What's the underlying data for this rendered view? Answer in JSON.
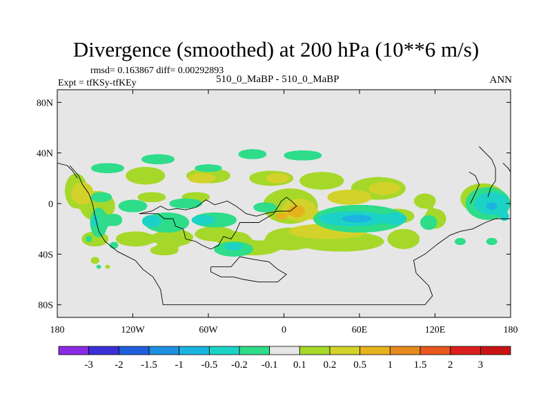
{
  "chart_data": {
    "type": "heatmap",
    "title": "Divergence (smoothed) at 200 hPa (10**6 m/s)",
    "stats": "rmsd= 0.163867 diff= 0.00292893",
    "experiment": "Expt = tfKSy-tfKEy",
    "case": "510_0_MaBP - 510_0_MaBP",
    "season": "ANN",
    "xlim": [
      -180,
      180
    ],
    "ylim": [
      -90,
      90
    ],
    "x_ticks": [
      {
        "value": -180,
        "label": "180"
      },
      {
        "value": -120,
        "label": "120W"
      },
      {
        "value": -60,
        "label": "60W"
      },
      {
        "value": 0,
        "label": "0"
      },
      {
        "value": 60,
        "label": "60E"
      },
      {
        "value": 120,
        "label": "120E"
      },
      {
        "value": 180,
        "label": "180"
      }
    ],
    "y_ticks": [
      {
        "value": 80,
        "label": "80N"
      },
      {
        "value": 40,
        "label": "40N"
      },
      {
        "value": 0,
        "label": "0"
      },
      {
        "value": -40,
        "label": "40S"
      },
      {
        "value": -80,
        "label": "80S"
      }
    ],
    "colorbar": {
      "levels": [
        "-3",
        "-2",
        "-1.5",
        "-1",
        "-0.5",
        "-0.2",
        "-0.1",
        "0.1",
        "0.2",
        "0.5",
        "1",
        "1.5",
        "2",
        "3"
      ],
      "colors": [
        "#8a2be2",
        "#3b2fd6",
        "#1f5fdc",
        "#1e8fe0",
        "#1ab3e0",
        "#1ed2c6",
        "#2fdc8a",
        "#e6e6e6",
        "#a6d82a",
        "#d2d22a",
        "#e6b21e",
        "#e68a1e",
        "#e6581e",
        "#dc1e1e",
        "#c81414"
      ]
    },
    "fields": [
      {
        "value": "0.1 to 0.2",
        "color": "#a6d82a",
        "blobs": [
          [
            -148,
            -2,
            14,
            12
          ],
          [
            -165,
            10,
            9,
            14
          ],
          [
            -150,
            -28,
            11,
            6
          ],
          [
            -118,
            -28,
            16,
            6
          ],
          [
            -88,
            -27,
            16,
            7
          ],
          [
            -55,
            -24,
            16,
            6
          ],
          [
            -40,
            -28,
            14,
            6
          ],
          [
            -95,
            -37,
            12,
            4
          ],
          [
            -25,
            -35,
            22,
            6
          ],
          [
            5,
            -2,
            22,
            14
          ],
          [
            5,
            -28,
            20,
            9
          ],
          [
            45,
            -30,
            35,
            8
          ],
          [
            95,
            -28,
            13,
            8
          ],
          [
            90,
            -10,
            14,
            6
          ],
          [
            120,
            -12,
            9,
            8
          ],
          [
            158,
            4,
            18,
            12
          ],
          [
            -110,
            22,
            16,
            7
          ],
          [
            -60,
            22,
            18,
            6
          ],
          [
            -10,
            20,
            18,
            6
          ],
          [
            30,
            18,
            18,
            7
          ],
          [
            75,
            12,
            22,
            9
          ],
          [
            112,
            2,
            9,
            6
          ],
          [
            -105,
            5,
            12,
            4
          ],
          [
            -70,
            5,
            12,
            4
          ],
          [
            -150,
            -45,
            4,
            3
          ],
          [
            -140,
            -50,
            3,
            2
          ]
        ]
      },
      {
        "value": "0.2 to 0.5",
        "color": "#d2d22a",
        "blobs": [
          [
            -160,
            8,
            9,
            9
          ],
          [
            12,
            -5,
            14,
            9
          ],
          [
            35,
            -22,
            32,
            6
          ],
          [
            52,
            5,
            18,
            6
          ],
          [
            80,
            12,
            13,
            5
          ],
          [
            -65,
            20,
            12,
            4
          ],
          [
            -5,
            20,
            10,
            4
          ],
          [
            30,
            -10,
            10,
            4
          ],
          [
            160,
            2,
            12,
            8
          ]
        ]
      },
      {
        "value": "0.5 to 1",
        "color": "#e6b21e",
        "blobs": [
          [
            10,
            -6,
            7,
            5
          ],
          [
            -2,
            -10,
            5,
            3
          ]
        ]
      },
      {
        "value": "-0.2 to -0.1",
        "color": "#2fdc8a",
        "blobs": [
          [
            -147,
            -15,
            7,
            12
          ],
          [
            -135,
            -13,
            7,
            5
          ],
          [
            -155,
            -28,
            3,
            3
          ],
          [
            -135,
            -33,
            4,
            3
          ],
          [
            -145,
            5,
            9,
            4
          ],
          [
            -140,
            28,
            14,
            4
          ],
          [
            -100,
            35,
            14,
            4
          ],
          [
            -60,
            28,
            12,
            3
          ],
          [
            -25,
            39,
            12,
            4
          ],
          [
            15,
            38,
            16,
            4
          ],
          [
            -93,
            -15,
            18,
            8
          ],
          [
            -55,
            -13,
            18,
            6
          ],
          [
            -40,
            -36,
            16,
            6
          ],
          [
            60,
            -12,
            37,
            11
          ],
          [
            115,
            -15,
            7,
            6
          ],
          [
            162,
            0,
            18,
            13
          ],
          [
            -120,
            -2,
            12,
            5
          ],
          [
            -78,
            0,
            14,
            4
          ],
          [
            -15,
            -3,
            10,
            4
          ],
          [
            140,
            -30,
            5,
            3
          ],
          [
            165,
            -30,
            5,
            3
          ],
          [
            -147,
            -50,
            3,
            2
          ]
        ]
      },
      {
        "value": "-0.5 to -0.2",
        "color": "#1ed2c6",
        "blobs": [
          [
            -150,
            -14,
            3,
            5
          ],
          [
            -105,
            -14,
            8,
            5
          ],
          [
            -64,
            -13,
            10,
            4
          ],
          [
            -40,
            -34,
            8,
            3
          ],
          [
            55,
            -12,
            28,
            6
          ],
          [
            88,
            -12,
            10,
            5
          ],
          [
            165,
            0,
            14,
            9
          ],
          [
            175,
            -10,
            4,
            4
          ]
        ]
      },
      {
        "value": "-1 to -0.5",
        "color": "#1ab3e0",
        "blobs": [
          [
            58,
            -12,
            13,
            3
          ],
          [
            165,
            -2,
            5,
            3
          ]
        ]
      }
    ],
    "coastline": [
      [
        [
          -170,
          30
        ],
        [
          -163,
          22
        ],
        [
          -160,
          15
        ],
        [
          -155,
          8
        ],
        [
          -152,
          0
        ],
        [
          -150,
          -10
        ],
        [
          -147,
          -22
        ],
        [
          -142,
          -30
        ],
        [
          -132,
          -38
        ],
        [
          -118,
          -45
        ],
        [
          -112,
          -52
        ],
        [
          -104,
          -58
        ],
        [
          -98,
          -68
        ],
        [
          -96,
          -80
        ],
        [
          -75,
          -80
        ],
        [
          -40,
          -80
        ],
        [
          0,
          -80
        ],
        [
          40,
          -80
        ],
        [
          80,
          -80
        ],
        [
          112,
          -80
        ],
        [
          118,
          -73
        ],
        [
          115,
          -65
        ],
        [
          105,
          -55
        ],
        [
          103,
          -45
        ],
        [
          112,
          -40
        ],
        [
          122,
          -32
        ],
        [
          132,
          -25
        ],
        [
          140,
          -22
        ],
        [
          150,
          -20
        ],
        [
          160,
          -15
        ],
        [
          168,
          -12
        ],
        [
          180,
          -12
        ]
      ],
      [
        [
          -115,
          -8
        ],
        [
          -100,
          -8
        ],
        [
          -95,
          -12
        ],
        [
          -88,
          -12
        ],
        [
          -86,
          -18
        ],
        [
          -80,
          -20
        ],
        [
          -78,
          -28
        ],
        [
          -70,
          -30
        ],
        [
          -65,
          -33
        ],
        [
          -58,
          -36
        ],
        [
          -52,
          -33
        ],
        [
          -48,
          -26
        ],
        [
          -42,
          -28
        ],
        [
          -38,
          -22
        ],
        [
          -35,
          -15
        ],
        [
          -20,
          -15
        ],
        [
          -15,
          -12
        ],
        [
          -8,
          -8
        ],
        [
          -5,
          -3
        ],
        [
          -2,
          2
        ],
        [
          2,
          5
        ],
        [
          6,
          2
        ],
        [
          10,
          -2
        ],
        [
          5,
          -6
        ],
        [
          -5,
          -6
        ],
        [
          -15,
          -8
        ],
        [
          -22,
          -10
        ],
        [
          -30,
          -8
        ],
        [
          -38,
          -2
        ],
        [
          -45,
          2
        ],
        [
          -55,
          -1
        ],
        [
          -62,
          3
        ],
        [
          -70,
          -3
        ],
        [
          -78,
          -5
        ],
        [
          -85,
          -4
        ],
        [
          -92,
          -5
        ],
        [
          -98,
          -2
        ],
        [
          -105,
          -6
        ],
        [
          -115,
          -8
        ]
      ],
      [
        [
          -58,
          -50
        ],
        [
          -42,
          -50
        ],
        [
          -35,
          -42
        ],
        [
          -25,
          -44
        ],
        [
          -12,
          -46
        ],
        [
          -5,
          -52
        ],
        [
          2,
          -56
        ],
        [
          -5,
          -62
        ],
        [
          -20,
          -62
        ],
        [
          -32,
          -60
        ],
        [
          -40,
          -58
        ],
        [
          -50,
          -58
        ],
        [
          -58,
          -54
        ],
        [
          -58,
          -50
        ]
      ],
      [
        [
          -180,
          32
        ],
        [
          -172,
          30
        ],
        [
          -168,
          26
        ],
        [
          -164,
          20
        ]
      ],
      [
        [
          155,
          45
        ],
        [
          160,
          40
        ],
        [
          165,
          35
        ],
        [
          168,
          28
        ],
        [
          168,
          18
        ],
        [
          164,
          12
        ],
        [
          162,
          5
        ]
      ],
      [
        [
          147,
          25
        ],
        [
          152,
          22
        ],
        [
          155,
          15
        ],
        [
          152,
          8
        ],
        [
          148,
          0
        ]
      ],
      [
        [
          174,
          32
        ],
        [
          178,
          28
        ],
        [
          180,
          25
        ]
      ]
    ]
  }
}
